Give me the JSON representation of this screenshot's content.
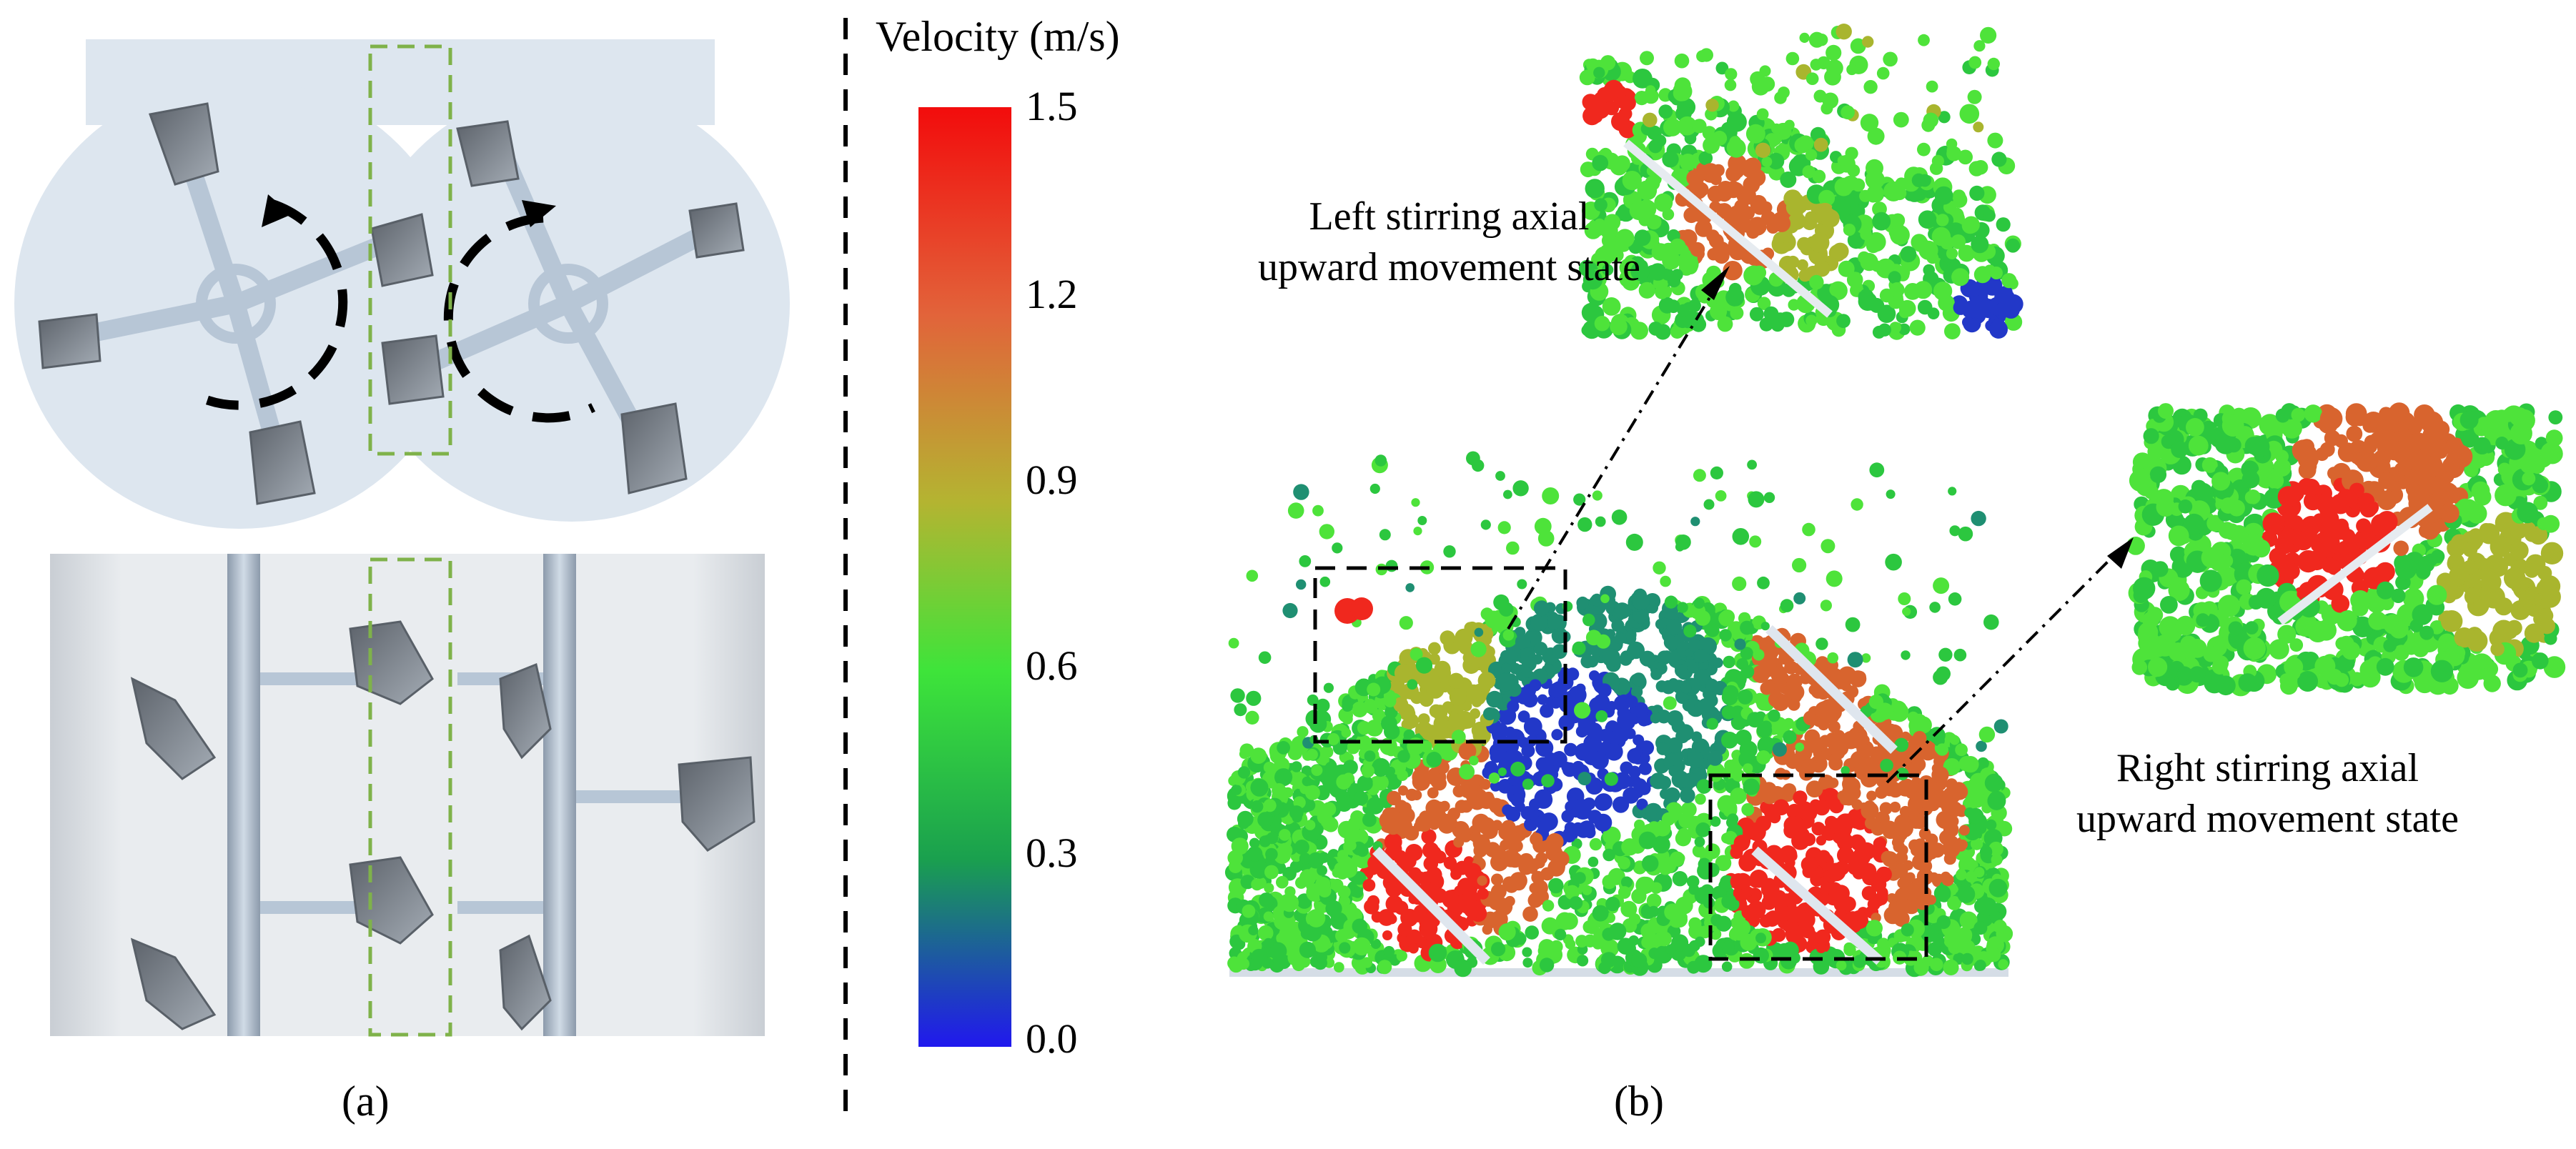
{
  "figure": {
    "colorbar": {
      "title": "Velocity (m/s)",
      "ticks": [
        "1.5",
        "1.2",
        "0.9",
        "0.6",
        "0.3",
        "0.0"
      ],
      "colors": [
        "#f20c0c",
        "#e2633a",
        "#b4b431",
        "#3ee43a",
        "#1aa04e",
        "#2018ee"
      ]
    },
    "panel_a": {
      "caption": "(a)"
    },
    "panel_b": {
      "caption": "(b)",
      "left_annotation": {
        "line1": "Left stirring axial",
        "line2": "upward movement state"
      },
      "right_annotation": {
        "line1": "Right stirring axial",
        "line2": "upward movement state"
      }
    },
    "colors": {
      "dashed_green": "#7fb24a",
      "paddle": "#6e7681",
      "tank": "#dde6ef",
      "shaft": "#a9b8c8"
    }
  }
}
